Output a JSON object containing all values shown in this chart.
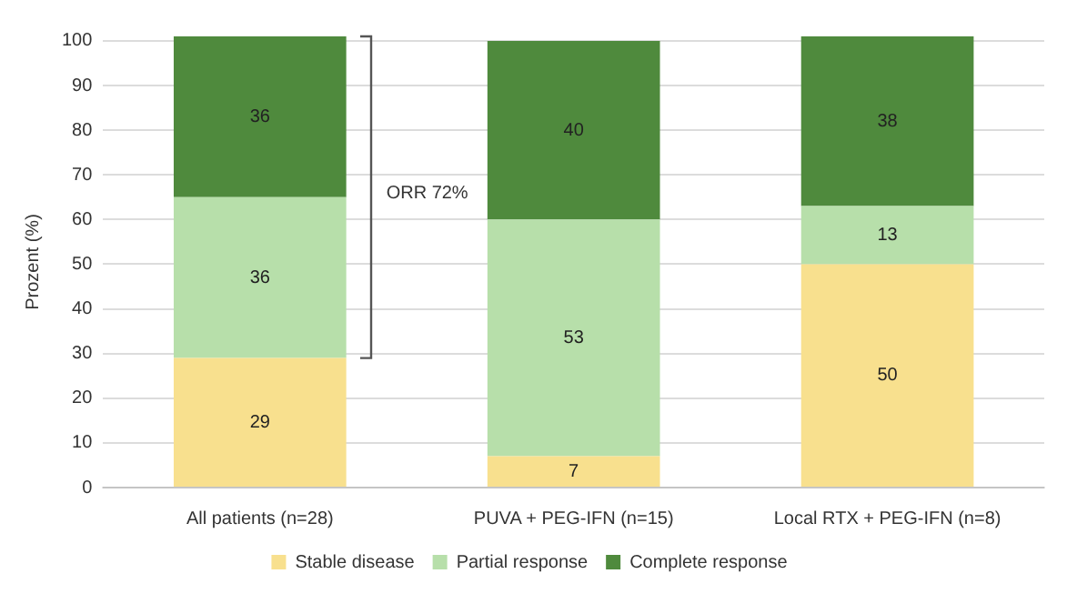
{
  "chart_data": {
    "type": "bar",
    "stacked": true,
    "ylabel": "Prozent (%)",
    "categories": [
      "All patients (n=28)",
      "PUVA + PEG-IFN (n=15)",
      "Local RTX + PEG-IFN (n=8)"
    ],
    "series": [
      {
        "name": "Stable disease",
        "color": "#f8e08e",
        "values": [
          29,
          7,
          50
        ]
      },
      {
        "name": "Partial response",
        "color": "#b7dfaa",
        "values": [
          36,
          53,
          13
        ]
      },
      {
        "name": "Complete response",
        "color": "#4f8a3d",
        "values": [
          36,
          40,
          38
        ]
      }
    ],
    "ylim": [
      0,
      101
    ],
    "yticks": [
      0,
      10,
      20,
      30,
      40,
      50,
      60,
      70,
      80,
      90,
      100
    ],
    "grid": "y",
    "legend": "bottom",
    "data_labels": true,
    "annotations": [
      "ORR 72%"
    ]
  }
}
